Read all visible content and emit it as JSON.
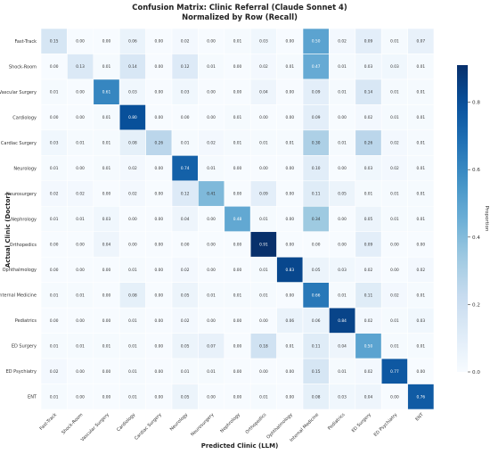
{
  "chart_data": {
    "type": "heatmap",
    "title": "Confusion Matrix: Clinic Referral (Claude Sonnet 4)",
    "subtitle": "Normalized by Row (Recall)",
    "xlabel": "Predicted Clinic (LLM)",
    "ylabel": "Actual Clinic (Doctor)",
    "rows": [
      "Fast-Track",
      "Shock-Room",
      "Vascular Surgery",
      "Cardiology",
      "Cardiac Surgery",
      "Neurology",
      "Neurosurgery",
      "Nephrology",
      "Orthopedics",
      "Ophthalmology",
      "Internal Medicine",
      "Pediatrics",
      "ED Surgery",
      "ED Psychiatry",
      "ENT"
    ],
    "columns": [
      "Fast-Track",
      "Shock-Room",
      "Vascular Surgery",
      "Cardiology",
      "Cardiac Surgery",
      "Neurology",
      "Neurosurgery",
      "Nephrology",
      "Orthopedics",
      "Ophthalmology",
      "Internal Medicine",
      "Pediatrics",
      "ED Surgery",
      "ED Psychiatry",
      "ENT"
    ],
    "values": [
      [
        0.15,
        0.0,
        0.0,
        0.06,
        0.0,
        0.02,
        0.0,
        0.01,
        0.03,
        0.0,
        0.5,
        0.02,
        0.09,
        0.01,
        0.07
      ],
      [
        0.0,
        0.13,
        0.01,
        0.14,
        0.0,
        0.12,
        0.01,
        0.0,
        0.02,
        0.01,
        0.47,
        0.01,
        0.03,
        0.03,
        0.01
      ],
      [
        0.01,
        0.0,
        0.61,
        0.03,
        0.0,
        0.03,
        0.0,
        0.0,
        0.04,
        0.0,
        0.09,
        0.01,
        0.14,
        0.01,
        0.01
      ],
      [
        0.0,
        0.0,
        0.01,
        0.8,
        0.0,
        0.0,
        0.0,
        0.01,
        0.0,
        0.0,
        0.09,
        0.0,
        0.02,
        0.01,
        0.01
      ],
      [
        0.03,
        0.01,
        0.01,
        0.08,
        0.26,
        0.01,
        0.02,
        0.01,
        0.01,
        0.01,
        0.3,
        0.01,
        0.26,
        0.02,
        0.01
      ],
      [
        0.01,
        0.0,
        0.01,
        0.02,
        0.0,
        0.74,
        0.01,
        0.0,
        0.0,
        0.0,
        0.1,
        0.0,
        0.03,
        0.02,
        0.01
      ],
      [
        0.02,
        0.02,
        0.0,
        0.02,
        0.0,
        0.12,
        0.41,
        0.0,
        0.09,
        0.0,
        0.11,
        0.05,
        0.01,
        0.01,
        0.01
      ],
      [
        0.01,
        0.01,
        0.03,
        0.0,
        0.0,
        0.04,
        0.0,
        0.48,
        0.01,
        0.0,
        0.34,
        0.0,
        0.05,
        0.01,
        0.01
      ],
      [
        0.0,
        0.0,
        0.04,
        0.0,
        0.0,
        0.0,
        0.0,
        0.0,
        0.91,
        0.0,
        0.0,
        0.0,
        0.09,
        0.0,
        0.0
      ],
      [
        0.0,
        0.0,
        0.0,
        0.01,
        0.0,
        0.02,
        0.0,
        0.0,
        0.01,
        0.83,
        0.05,
        0.03,
        0.02,
        0.0,
        0.02
      ],
      [
        0.01,
        0.01,
        0.0,
        0.08,
        0.0,
        0.05,
        0.01,
        0.01,
        0.01,
        0.0,
        0.66,
        0.01,
        0.11,
        0.02,
        0.01
      ],
      [
        0.0,
        0.0,
        0.0,
        0.01,
        0.0,
        0.02,
        0.0,
        0.0,
        0.0,
        0.06,
        0.06,
        0.84,
        0.02,
        0.01,
        0.03
      ],
      [
        0.01,
        0.01,
        0.01,
        0.01,
        0.0,
        0.05,
        0.07,
        0.0,
        0.18,
        0.01,
        0.11,
        0.04,
        0.5,
        0.01,
        0.01
      ],
      [
        0.02,
        0.0,
        0.0,
        0.01,
        0.0,
        0.01,
        0.01,
        0.0,
        0.0,
        0.0,
        0.15,
        0.01,
        0.02,
        0.77,
        0.0
      ],
      [
        0.01,
        0.0,
        0.0,
        0.01,
        0.0,
        0.05,
        0.0,
        0.0,
        0.01,
        0.0,
        0.08,
        0.03,
        0.04,
        0.0,
        0.76
      ]
    ],
    "colorbar": {
      "label": "Proportion",
      "ticks": [
        0.0,
        0.2,
        0.4,
        0.6,
        0.8
      ],
      "range": [
        0,
        0.91
      ],
      "colormap": "Blues"
    },
    "grid": false,
    "legend": "right"
  }
}
